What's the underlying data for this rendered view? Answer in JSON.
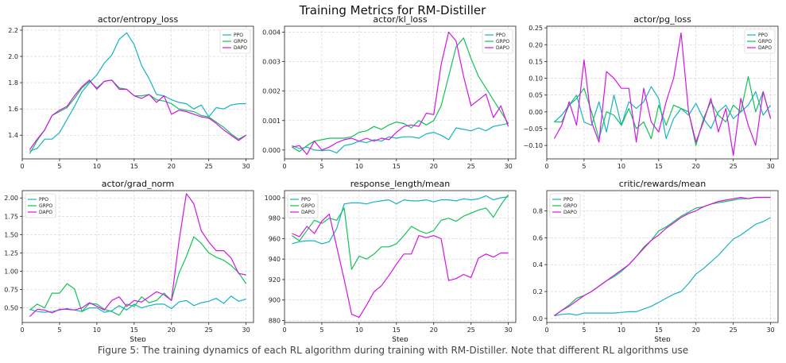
{
  "figure_title": "Training Metrics for RM-Distiller",
  "caption": "Figure 5: The training dynamics of each RL algorithm during training with RM-Distiller. Note that different RL algorithms use",
  "colors": {
    "PPO": "#17b3c2",
    "GRPO": "#13c257",
    "DAPO": "#d414e6"
  },
  "chart_data": [
    {
      "type": "line",
      "title": "actor/entropy_loss",
      "xlabel": "",
      "xlim": [
        0,
        31
      ],
      "ylim": [
        1.22,
        2.23
      ],
      "xticks": [
        0,
        5,
        10,
        15,
        20,
        25,
        30
      ],
      "yticks": [
        1.4,
        1.6,
        1.8,
        2.0,
        2.2
      ],
      "ytick_labels": [
        "1.4",
        "1.6",
        "1.8",
        "2.0",
        "2.2"
      ],
      "grid": true,
      "legend": "top-right",
      "x": [
        1,
        2,
        3,
        4,
        5,
        6,
        7,
        8,
        9,
        10,
        11,
        12,
        13,
        14,
        15,
        16,
        17,
        18,
        19,
        20,
        21,
        22,
        23,
        24,
        25,
        26,
        27,
        28,
        29,
        30
      ],
      "series": [
        {
          "name": "PPO",
          "values": [
            1.28,
            1.3,
            1.37,
            1.37,
            1.42,
            1.52,
            1.62,
            1.73,
            1.8,
            1.86,
            1.95,
            2.01,
            2.13,
            2.18,
            2.09,
            1.93,
            1.83,
            1.71,
            1.7,
            1.67,
            1.65,
            1.64,
            1.6,
            1.63,
            1.54,
            1.61,
            1.6,
            1.63,
            1.64,
            1.64
          ]
        },
        {
          "name": "GRPO",
          "values": [
            1.26,
            1.36,
            1.44,
            1.55,
            1.58,
            1.61,
            1.68,
            1.76,
            1.81,
            1.76,
            1.81,
            1.82,
            1.76,
            1.75,
            1.7,
            1.7,
            1.71,
            1.67,
            1.66,
            1.64,
            1.6,
            1.59,
            1.58,
            1.55,
            1.54,
            1.5,
            1.46,
            1.41,
            1.37,
            1.4
          ]
        },
        {
          "name": "DAPO",
          "values": [
            1.29,
            1.37,
            1.44,
            1.55,
            1.59,
            1.62,
            1.7,
            1.77,
            1.82,
            1.75,
            1.81,
            1.82,
            1.75,
            1.75,
            1.7,
            1.68,
            1.71,
            1.65,
            1.7,
            1.56,
            1.59,
            1.58,
            1.56,
            1.54,
            1.53,
            1.49,
            1.44,
            1.4,
            1.36,
            1.4
          ]
        }
      ]
    },
    {
      "type": "line",
      "title": "actor/kl_loss",
      "xlabel": "",
      "xlim": [
        0,
        31
      ],
      "ylim": [
        -0.0003,
        0.0042
      ],
      "xticks": [
        0,
        5,
        10,
        15,
        20,
        25,
        30
      ],
      "yticks": [
        0,
        0.001,
        0.002,
        0.003,
        0.004
      ],
      "ytick_labels": [
        "0.000",
        "0.001",
        "0.002",
        "0.003",
        "0.004"
      ],
      "grid": true,
      "legend": "top-right",
      "x": [
        1,
        2,
        3,
        4,
        5,
        6,
        7,
        8,
        9,
        10,
        11,
        12,
        13,
        14,
        15,
        16,
        17,
        18,
        19,
        20,
        21,
        22,
        23,
        24,
        25,
        26,
        27,
        28,
        29,
        30
      ],
      "series": [
        {
          "name": "PPO",
          "values": [
            0.00015,
            5e-05,
            0.0001,
            0.0,
            -2e-05,
            0.0,
            -0.0001,
            0.00015,
            0.0002,
            0.0003,
            0.00025,
            0.00035,
            0.0003,
            0.00045,
            0.0004,
            0.00045,
            0.00045,
            0.0004,
            0.00055,
            0.0006,
            0.0005,
            0.00035,
            0.00075,
            0.0007,
            0.00065,
            0.00075,
            0.00065,
            0.0008,
            0.00085,
            0.0009
          ]
        },
        {
          "name": "GRPO",
          "values": [
            0.0001,
            -5e-05,
            0.00015,
            0.0003,
            0.00035,
            0.0004,
            0.0004,
            0.0004,
            0.00045,
            0.0006,
            0.00065,
            0.0008,
            0.0007,
            0.00085,
            0.00095,
            0.0009,
            0.00075,
            0.001,
            0.00085,
            0.001,
            0.0015,
            0.0025,
            0.0035,
            0.0038,
            0.0031,
            0.0025,
            0.0021,
            0.0017,
            0.0013,
            0.0009
          ]
        },
        {
          "name": "DAPO",
          "values": [
            0.0001,
            0.00015,
            -0.00015,
            0.0003,
            0.0,
            0.0001,
            0.00025,
            0.00035,
            0.0004,
            0.0003,
            0.0004,
            0.0003,
            0.0004,
            0.00035,
            0.0006,
            0.0008,
            0.00085,
            0.0008,
            0.00125,
            0.0012,
            0.0029,
            0.004,
            0.0037,
            0.0025,
            0.0015,
            0.0017,
            0.0019,
            0.0011,
            0.0015,
            0.0008
          ]
        }
      ]
    },
    {
      "type": "line",
      "title": "actor/pg_loss",
      "xlabel": "",
      "xlim": [
        0,
        31
      ],
      "ylim": [
        -0.14,
        0.255
      ],
      "xticks": [
        0,
        5,
        10,
        15,
        20,
        25,
        30
      ],
      "yticks": [
        -0.1,
        -0.05,
        0,
        0.05,
        0.1,
        0.15,
        0.2,
        0.25
      ],
      "ytick_labels": [
        "−0.10",
        "−0.05",
        "0.00",
        "0.05",
        "0.10",
        "0.15",
        "0.20",
        "0.25"
      ],
      "grid": true,
      "legend": "top-right",
      "x": [
        1,
        2,
        3,
        4,
        5,
        6,
        7,
        8,
        9,
        10,
        11,
        12,
        13,
        14,
        15,
        16,
        17,
        18,
        19,
        20,
        21,
        22,
        23,
        24,
        25,
        26,
        27,
        28,
        29,
        30
      ],
      "series": [
        {
          "name": "PPO",
          "values": [
            -0.03,
            -0.01,
            0.02,
            0.05,
            -0.03,
            -0.04,
            0.03,
            -0.06,
            0.05,
            -0.04,
            0.03,
            0.01,
            0.03,
            0.075,
            0.04,
            -0.08,
            -0.02,
            0.01,
            -0.01,
            0.025,
            -0.02,
            -0.05,
            0.0,
            0.02,
            -0.02,
            0.0,
            0.02,
            0.06,
            -0.01,
            0.02
          ]
        },
        {
          "name": "GRPO",
          "values": [
            -0.03,
            -0.03,
            0.02,
            0.04,
            0.07,
            0.0,
            -0.08,
            0.0,
            -0.01,
            -0.04,
            0.01,
            -0.05,
            -0.03,
            -0.08,
            0.02,
            -0.04,
            0.02,
            0.01,
            0.0,
            -0.1,
            -0.02,
            0.03,
            -0.01,
            -0.03,
            0.02,
            0.0,
            0.105,
            0.0,
            0.06,
            -0.02
          ]
        },
        {
          "name": "DAPO",
          "values": [
            -0.08,
            -0.04,
            0.03,
            -0.04,
            0.155,
            -0.03,
            -0.09,
            0.12,
            0.1,
            0.07,
            0.07,
            -0.09,
            0.07,
            -0.03,
            -0.06,
            0.03,
            0.1,
            0.235,
            0.0,
            -0.09,
            -0.03,
            0.04,
            -0.06,
            0.01,
            -0.13,
            0.04,
            -0.04,
            -0.1,
            0.06,
            -0.02
          ]
        }
      ]
    },
    {
      "type": "line",
      "title": "actor/grad_norm",
      "xlabel": "Step",
      "xlim": [
        0,
        31
      ],
      "ylim": [
        0.3,
        2.1
      ],
      "xticks": [
        0,
        5,
        10,
        15,
        20,
        25,
        30
      ],
      "yticks": [
        0.5,
        0.75,
        1.0,
        1.25,
        1.5,
        1.75,
        2.0
      ],
      "ytick_labels": [
        "0.50",
        "0.75",
        "1.00",
        "1.25",
        "1.50",
        "1.75",
        "2.00"
      ],
      "grid": true,
      "legend": "top-left",
      "x": [
        1,
        2,
        3,
        4,
        5,
        6,
        7,
        8,
        9,
        10,
        11,
        12,
        13,
        14,
        15,
        16,
        17,
        18,
        19,
        20,
        21,
        22,
        23,
        24,
        25,
        26,
        27,
        28,
        29,
        30
      ],
      "series": [
        {
          "name": "PPO",
          "values": [
            0.48,
            0.45,
            0.44,
            0.45,
            0.47,
            0.49,
            0.47,
            0.45,
            0.5,
            0.5,
            0.44,
            0.46,
            0.53,
            0.47,
            0.55,
            0.5,
            0.53,
            0.55,
            0.55,
            0.49,
            0.58,
            0.6,
            0.53,
            0.57,
            0.59,
            0.63,
            0.56,
            0.66,
            0.59,
            0.62
          ]
        },
        {
          "name": "GRPO",
          "values": [
            0.47,
            0.55,
            0.5,
            0.7,
            0.7,
            0.83,
            0.76,
            0.45,
            0.56,
            0.55,
            0.48,
            0.45,
            0.4,
            0.55,
            0.52,
            0.65,
            0.57,
            0.6,
            0.7,
            0.6,
            0.97,
            1.2,
            1.47,
            1.38,
            1.25,
            1.19,
            1.15,
            1.08,
            0.98,
            0.83
          ]
        },
        {
          "name": "DAPO",
          "values": [
            0.38,
            0.48,
            0.47,
            0.43,
            0.48,
            0.48,
            0.47,
            0.5,
            0.57,
            0.52,
            0.47,
            0.6,
            0.65,
            0.52,
            0.6,
            0.58,
            0.65,
            0.72,
            0.68,
            0.6,
            1.4,
            2.06,
            1.92,
            1.55,
            1.4,
            1.28,
            1.28,
            1.18,
            0.97,
            0.95
          ]
        }
      ]
    },
    {
      "type": "line",
      "title": "response_length/mean",
      "xlabel": "Step",
      "xlim": [
        0,
        31
      ],
      "ylim": [
        878,
        1007
      ],
      "xticks": [
        0,
        5,
        10,
        15,
        20,
        25,
        30
      ],
      "yticks": [
        880,
        900,
        920,
        940,
        960,
        980,
        1000
      ],
      "ytick_labels": [
        "880",
        "900",
        "920",
        "940",
        "960",
        "980",
        "1000"
      ],
      "grid": true,
      "legend": "top-left",
      "x": [
        1,
        2,
        3,
        4,
        5,
        6,
        7,
        8,
        9,
        10,
        11,
        12,
        13,
        14,
        15,
        16,
        17,
        18,
        19,
        20,
        21,
        22,
        23,
        24,
        25,
        26,
        27,
        28,
        29,
        30
      ],
      "series": [
        {
          "name": "PPO",
          "values": [
            955,
            957,
            958,
            958,
            955,
            957,
            970,
            994,
            995,
            995,
            994,
            996,
            997,
            998,
            994,
            998,
            997,
            997,
            998,
            996,
            998,
            998,
            997,
            999,
            998,
            999,
            1002,
            998,
            1000,
            1001
          ]
        },
        {
          "name": "GRPO",
          "values": [
            963,
            958,
            968,
            978,
            975,
            980,
            978,
            990,
            930,
            943,
            940,
            945,
            952,
            952,
            955,
            963,
            972,
            968,
            965,
            968,
            978,
            980,
            977,
            982,
            985,
            988,
            990,
            981,
            993,
            1003
          ]
        },
        {
          "name": "DAPO",
          "values": [
            965,
            962,
            972,
            965,
            977,
            984,
            952,
            920,
            886,
            883,
            895,
            908,
            914,
            924,
            935,
            945,
            945,
            963,
            961,
            963,
            960,
            919,
            921,
            925,
            922,
            941,
            945,
            942,
            946,
            946
          ]
        }
      ]
    },
    {
      "type": "line",
      "title": "critic/rewards/mean",
      "xlabel": "Step",
      "xlim": [
        0,
        31
      ],
      "ylim": [
        -0.03,
        0.95
      ],
      "xticks": [
        0,
        5,
        10,
        15,
        20,
        25,
        30
      ],
      "yticks": [
        0.0,
        0.2,
        0.4,
        0.6,
        0.8
      ],
      "ytick_labels": [
        "0.0",
        "0.2",
        "0.4",
        "0.6",
        "0.8"
      ],
      "grid": true,
      "legend": "top-left",
      "x": [
        1,
        2,
        3,
        4,
        5,
        6,
        7,
        8,
        9,
        10,
        11,
        12,
        13,
        14,
        15,
        16,
        17,
        18,
        19,
        20,
        21,
        22,
        23,
        24,
        25,
        26,
        27,
        28,
        29,
        30
      ],
      "series": [
        {
          "name": "PPO",
          "values": [
            0.02,
            0.03,
            0.035,
            0.025,
            0.04,
            0.04,
            0.04,
            0.04,
            0.04,
            0.045,
            0.05,
            0.05,
            0.07,
            0.09,
            0.12,
            0.15,
            0.18,
            0.2,
            0.26,
            0.33,
            0.37,
            0.42,
            0.47,
            0.53,
            0.59,
            0.62,
            0.66,
            0.7,
            0.72,
            0.75
          ]
        },
        {
          "name": "GRPO",
          "values": [
            0.02,
            0.06,
            0.1,
            0.15,
            0.17,
            0.2,
            0.24,
            0.28,
            0.31,
            0.35,
            0.4,
            0.46,
            0.53,
            0.58,
            0.65,
            0.68,
            0.72,
            0.76,
            0.79,
            0.82,
            0.83,
            0.85,
            0.86,
            0.87,
            0.88,
            0.89,
            0.89,
            0.9,
            0.9,
            0.9
          ]
        },
        {
          "name": "DAPO",
          "values": [
            0.02,
            0.06,
            0.09,
            0.13,
            0.17,
            0.2,
            0.24,
            0.28,
            0.32,
            0.36,
            0.4,
            0.46,
            0.52,
            0.58,
            0.62,
            0.67,
            0.71,
            0.75,
            0.78,
            0.8,
            0.83,
            0.85,
            0.87,
            0.88,
            0.89,
            0.9,
            0.89,
            0.9,
            0.9,
            0.9
          ]
        }
      ]
    }
  ]
}
